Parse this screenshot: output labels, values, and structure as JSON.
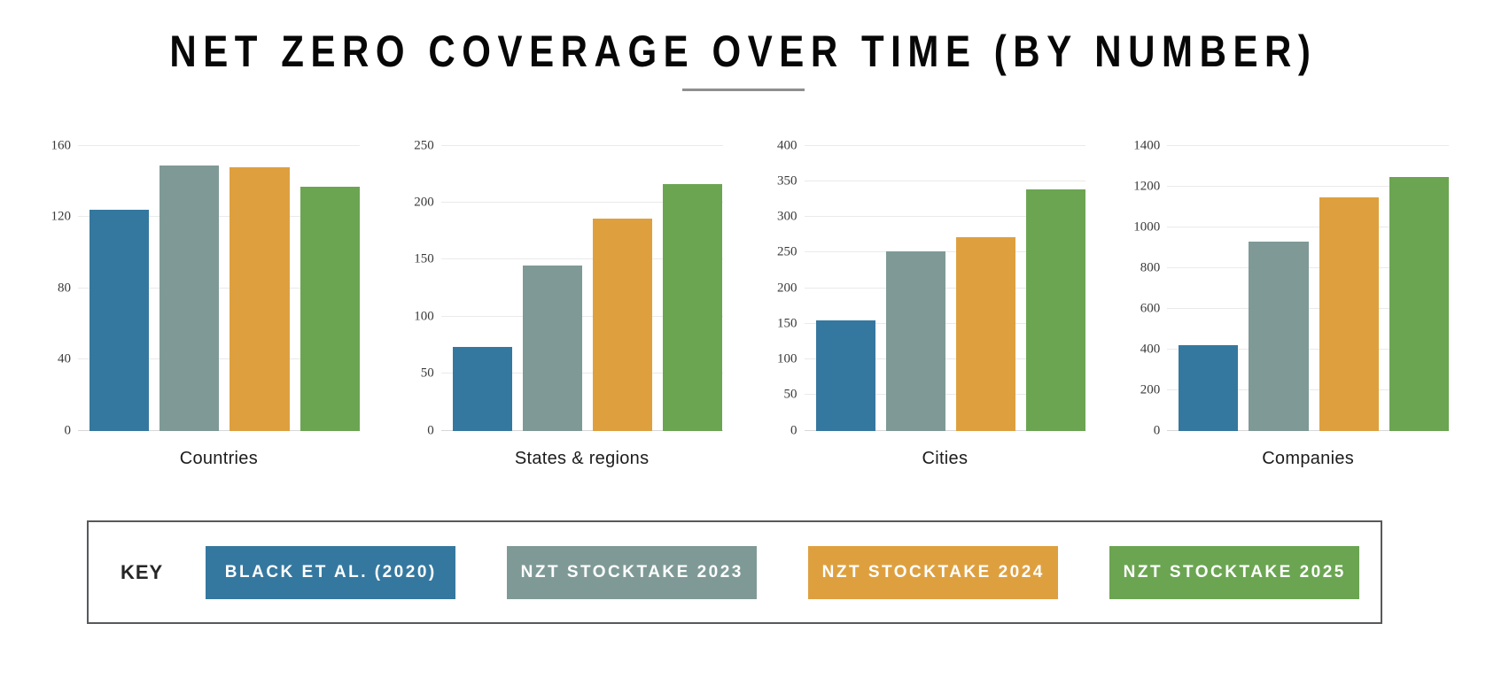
{
  "title": "NET ZERO COVERAGE OVER TIME (BY NUMBER)",
  "key": {
    "label": "KEY",
    "entries": [
      {
        "label": "BLACK ET AL. (2020)",
        "color": "#35789F"
      },
      {
        "label": "NZT STOCKTAKE 2023",
        "color": "#7F9A96"
      },
      {
        "label": "NZT STOCKTAKE 2024",
        "color": "#DEA03F"
      },
      {
        "label": "NZT STOCKTAKE 2025",
        "color": "#6BA552"
      }
    ]
  },
  "chart_data": {
    "type": "bar",
    "title": "NET ZERO COVERAGE OVER TIME (BY NUMBER)",
    "grid": true,
    "legend_position": "bottom",
    "series_names": [
      "BLACK ET AL. (2020)",
      "NZT STOCKTAKE 2023",
      "NZT STOCKTAKE 2024",
      "NZT STOCKTAKE 2025"
    ],
    "series_colors": [
      "#35789F",
      "#7F9A96",
      "#DEA03F",
      "#6BA552"
    ],
    "panels": [
      {
        "category": "Countries",
        "ylim": [
          0,
          160
        ],
        "yticks": [
          0,
          40,
          80,
          120,
          160
        ],
        "values": [
          124,
          149,
          148,
          137
        ]
      },
      {
        "category": "States & regions",
        "ylim": [
          0,
          250
        ],
        "yticks": [
          0,
          50,
          100,
          150,
          200,
          250
        ],
        "values": [
          73,
          145,
          186,
          216
        ]
      },
      {
        "category": "Cities",
        "ylim": [
          0,
          400
        ],
        "yticks": [
          0,
          50,
          100,
          150,
          200,
          250,
          300,
          350,
          400
        ],
        "values": [
          155,
          252,
          271,
          338
        ]
      },
      {
        "category": "Companies",
        "ylim": [
          0,
          1400
        ],
        "yticks": [
          0,
          200,
          400,
          600,
          800,
          1000,
          1200,
          1400
        ],
        "values": [
          420,
          930,
          1145,
          1245
        ]
      }
    ]
  }
}
